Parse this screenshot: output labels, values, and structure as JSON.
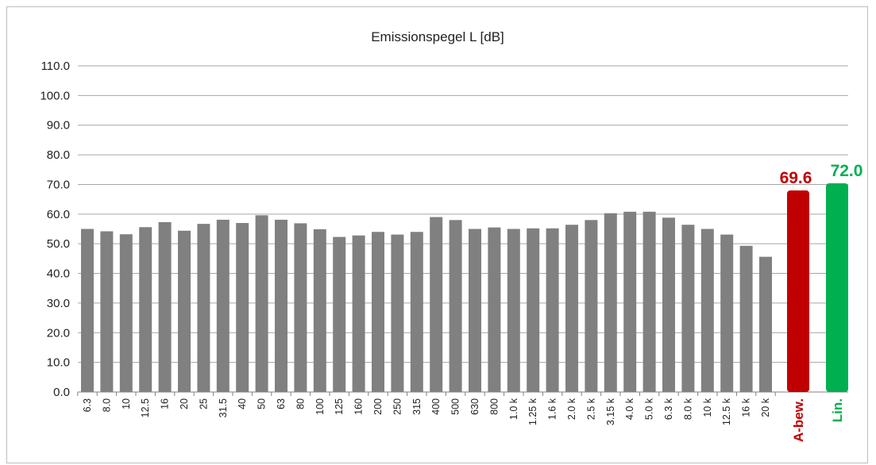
{
  "chart_data": {
    "type": "bar",
    "title": "Emissionspegel L [dB]",
    "ylim": [
      0,
      110
    ],
    "yticks": [
      "0.0",
      "10.0",
      "20.0",
      "30.0",
      "40.0",
      "50.0",
      "60.0",
      "70.0",
      "80.0",
      "90.0",
      "100.0",
      "110.0"
    ],
    "grid": true,
    "categories": [
      "6.3",
      "8.0",
      "10",
      "12.5",
      "16",
      "20",
      "25",
      "31.5",
      "40",
      "50",
      "63",
      "80",
      "100",
      "125",
      "160",
      "200",
      "250",
      "315",
      "400",
      "500",
      "630",
      "800",
      "1.0 k",
      "1.25 k",
      "1.6 k",
      "2.0 k",
      "2.5 k",
      "3.15 k",
      "4.0 k",
      "5.0 k",
      "6.3 k",
      "8.0 k",
      "10 k",
      "12.5 k",
      "16 k",
      "20 k"
    ],
    "values": [
      55.0,
      54.2,
      53.2,
      55.6,
      57.3,
      54.4,
      56.7,
      58.1,
      57.0,
      59.6,
      58.1,
      56.9,
      54.9,
      52.3,
      52.8,
      54.0,
      53.1,
      54.0,
      59.0,
      58.0,
      55.0,
      55.5,
      55.0,
      55.2,
      55.2,
      56.4,
      58.0,
      60.3,
      60.8,
      60.8,
      58.8,
      56.4,
      55.0,
      53.1,
      49.3,
      45.6
    ],
    "bar_color": "#808080",
    "summary_bars": [
      {
        "label": "A-bew.",
        "value": 69.6,
        "display": "69.6",
        "color": "#c00000"
      },
      {
        "label": "Lin.",
        "value": 72.0,
        "display": "72.0",
        "color": "#00b050"
      }
    ]
  }
}
